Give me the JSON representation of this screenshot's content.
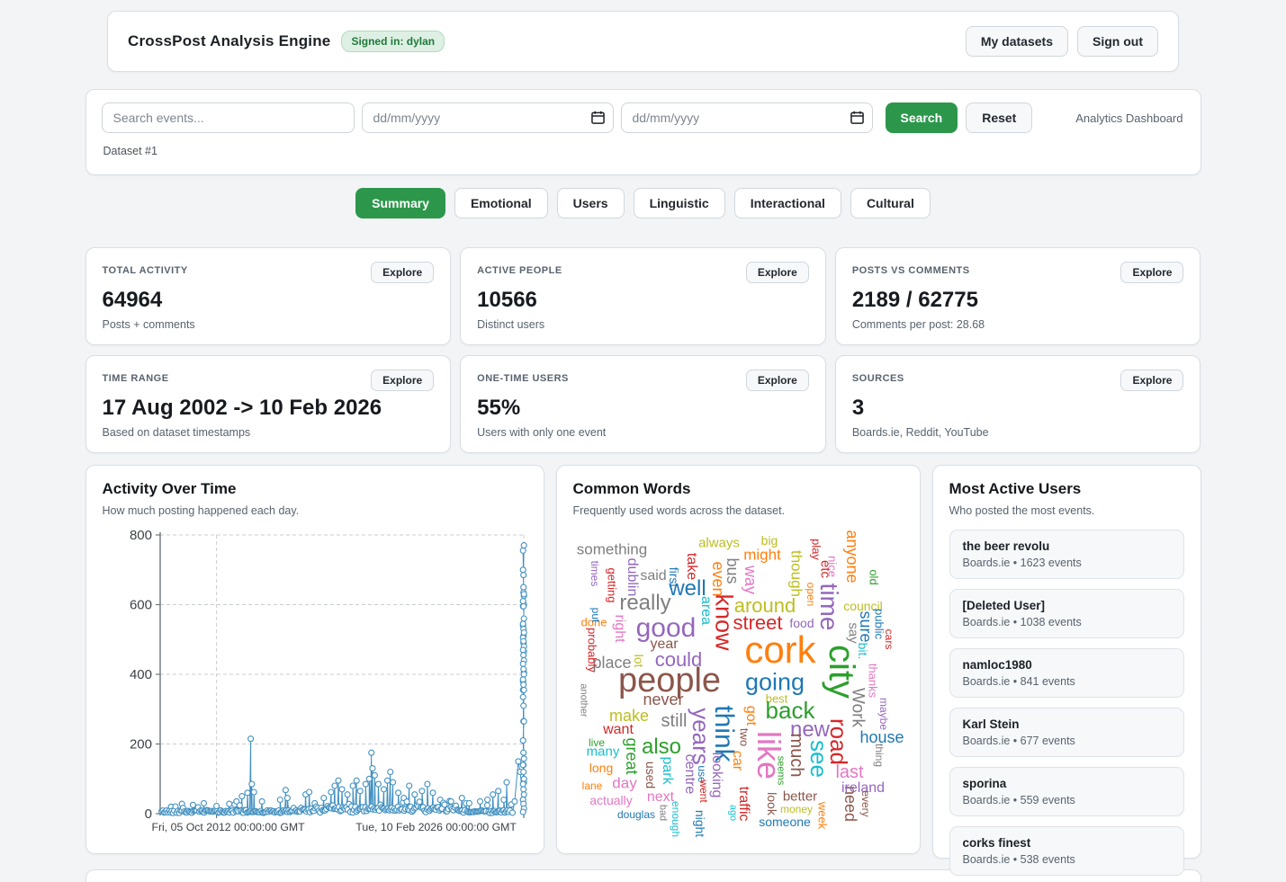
{
  "header": {
    "title": "CrossPost Analysis Engine",
    "signed_in_badge": "Signed in: dylan",
    "my_datasets_label": "My datasets",
    "sign_out_label": "Sign out"
  },
  "filters": {
    "search_placeholder": "Search events...",
    "date_from_placeholder": "dd/mm/yyyy",
    "date_to_placeholder": "dd/mm/yyyy",
    "search_label": "Search",
    "reset_label": "Reset",
    "context_label": "Analytics Dashboard",
    "dataset_label": "Dataset #1"
  },
  "tabs": [
    {
      "label": "Summary",
      "active": true
    },
    {
      "label": "Emotional",
      "active": false
    },
    {
      "label": "Users",
      "active": false
    },
    {
      "label": "Linguistic",
      "active": false
    },
    {
      "label": "Interactional",
      "active": false
    },
    {
      "label": "Cultural",
      "active": false
    }
  ],
  "stat_cards": [
    {
      "label": "TOTAL ACTIVITY",
      "value": "64964",
      "sub": "Posts + comments",
      "explore_label": "Explore"
    },
    {
      "label": "ACTIVE PEOPLE",
      "value": "10566",
      "sub": "Distinct users",
      "explore_label": "Explore"
    },
    {
      "label": "POSTS VS COMMENTS",
      "value": "2189 / 62775",
      "sub": "Comments per post: 28.68",
      "explore_label": "Explore"
    },
    {
      "label": "TIME RANGE",
      "value": "17 Aug 2002 -> 10 Feb 2026",
      "sub": "Based on dataset timestamps",
      "explore_label": "Explore"
    },
    {
      "label": "ONE-TIME USERS",
      "value": "55%",
      "sub": "Users with only one event",
      "explore_label": "Explore"
    },
    {
      "label": "SOURCES",
      "value": "3",
      "sub": "Boards.ie, Reddit, YouTube",
      "explore_label": "Explore"
    }
  ],
  "activity_chart": {
    "title": "Activity Over Time",
    "subtitle": "How much posting happened each day.",
    "chart_data": {
      "type": "line",
      "marker": "circle",
      "color": "#4190c0",
      "grid": true,
      "ylim": [
        0,
        800
      ],
      "yticks": [
        0,
        200,
        400,
        600,
        800
      ],
      "x_tick_positions": [
        0.155,
        1.0
      ],
      "x_tick_labels": [
        "Fri, 05 Oct 2012 00:00:00 GMT",
        "Tue, 10 Feb 2026 00:00:00 GMT"
      ],
      "x_label_centers": [
        0.187,
        0.759
      ],
      "baseline": {
        "count": 280,
        "typical_range": [
          2,
          30
        ],
        "seed": 42
      },
      "spikes": [
        [
          0.03,
          20
        ],
        [
          0.06,
          28
        ],
        [
          0.09,
          25
        ],
        [
          0.12,
          30
        ],
        [
          0.155,
          22
        ],
        [
          0.19,
          28
        ],
        [
          0.21,
          35
        ],
        [
          0.225,
          50
        ],
        [
          0.24,
          60
        ],
        [
          0.249,
          215
        ],
        [
          0.252,
          85
        ],
        [
          0.258,
          62
        ],
        [
          0.28,
          35
        ],
        [
          0.33,
          40
        ],
        [
          0.345,
          68
        ],
        [
          0.35,
          45
        ],
        [
          0.4,
          55
        ],
        [
          0.41,
          62
        ],
        [
          0.425,
          30
        ],
        [
          0.45,
          45
        ],
        [
          0.47,
          62
        ],
        [
          0.48,
          80
        ],
        [
          0.49,
          95
        ],
        [
          0.5,
          70
        ],
        [
          0.515,
          55
        ],
        [
          0.53,
          80
        ],
        [
          0.54,
          95
        ],
        [
          0.55,
          65
        ],
        [
          0.565,
          85
        ],
        [
          0.575,
          100
        ],
        [
          0.581,
          175
        ],
        [
          0.584,
          130
        ],
        [
          0.59,
          110
        ],
        [
          0.6,
          85
        ],
        [
          0.615,
          70
        ],
        [
          0.625,
          95
        ],
        [
          0.633,
          120
        ],
        [
          0.64,
          90
        ],
        [
          0.655,
          60
        ],
        [
          0.67,
          45
        ],
        [
          0.685,
          80
        ],
        [
          0.7,
          55
        ],
        [
          0.72,
          65
        ],
        [
          0.735,
          85
        ],
        [
          0.75,
          60
        ],
        [
          0.77,
          40
        ],
        [
          0.8,
          35
        ],
        [
          0.83,
          45
        ],
        [
          0.85,
          30
        ],
        [
          0.88,
          35
        ],
        [
          0.9,
          40
        ],
        [
          0.915,
          55
        ],
        [
          0.93,
          65
        ],
        [
          0.945,
          40
        ],
        [
          0.953,
          90
        ],
        [
          0.975,
          35
        ],
        [
          0.985,
          150
        ],
        [
          0.99,
          120
        ]
      ],
      "right_cluster_x": 0.998,
      "right_cluster": [
        40,
        140,
        90,
        380,
        265,
        405,
        355,
        490,
        465,
        540,
        510,
        600,
        595,
        635,
        625,
        700,
        685,
        770,
        755,
        650,
        630,
        610,
        595,
        560,
        545,
        530,
        520,
        505,
        495,
        480,
        470,
        455,
        440,
        430,
        415,
        400,
        385,
        370,
        355,
        335,
        310,
        265,
        210,
        175,
        158,
        140,
        120,
        100,
        85,
        70,
        55,
        40,
        28,
        15,
        5
      ]
    }
  },
  "word_cloud": {
    "title": "Common Words",
    "subtitle": "Frequently used words across the dataset.",
    "palette": {
      "blue": "#1f77b4",
      "orange": "#ff7f0e",
      "green": "#2ca02c",
      "red": "#d62728",
      "purple": "#9467bd",
      "brown": "#8c564b",
      "pink": "#e377c2",
      "gray": "#7f7f7f",
      "olive": "#bcbd22",
      "teal": "#17becf"
    },
    "words": [
      [
        "something",
        36,
        22,
        17,
        "gray",
        0
      ],
      [
        "always",
        155,
        15,
        15,
        "olive",
        0
      ],
      [
        "big",
        211,
        12,
        14,
        "olive",
        0
      ],
      [
        "might",
        203,
        28,
        17,
        "orange",
        0
      ],
      [
        "play",
        263,
        22,
        13,
        "red",
        90
      ],
      [
        "etc",
        273,
        44,
        15,
        "red",
        90
      ],
      [
        "anyone",
        303,
        30,
        18,
        "orange",
        90
      ],
      [
        "old",
        327,
        53,
        13,
        "green",
        90
      ],
      [
        "nice",
        281,
        41,
        13,
        "pink",
        90
      ],
      [
        "take",
        124,
        41,
        16,
        "red",
        90
      ],
      [
        "even",
        154,
        55,
        18,
        "orange",
        90
      ],
      [
        "bus",
        170,
        46,
        18,
        "gray",
        90
      ],
      [
        "way",
        190,
        56,
        18,
        "pink",
        90
      ],
      [
        "though",
        241,
        49,
        17,
        "olive",
        90
      ],
      [
        "times",
        17,
        49,
        12,
        "purple",
        90
      ],
      [
        "getting",
        36,
        62,
        13,
        "red",
        90
      ],
      [
        "dublin",
        58,
        53,
        16,
        "purple",
        90
      ],
      [
        "said",
        82,
        52,
        16,
        "gray",
        0
      ],
      [
        "first",
        105,
        53,
        14,
        "blue",
        90
      ],
      [
        "well",
        120,
        66,
        24,
        "blue",
        0
      ],
      [
        "open",
        257,
        72,
        12,
        "orange",
        90
      ],
      [
        "time",
        277,
        86,
        28,
        "purple",
        90
      ],
      [
        "council",
        315,
        85,
        14,
        "olive",
        0
      ],
      [
        "done",
        16,
        103,
        13,
        "orange",
        0
      ],
      [
        "right",
        44,
        110,
        16,
        "pink",
        90
      ],
      [
        "really",
        73,
        82,
        24,
        "gray",
        0
      ],
      [
        "area",
        140,
        90,
        16,
        "teal",
        90
      ],
      [
        "know",
        160,
        103,
        27,
        "red",
        90
      ],
      [
        "around",
        206,
        85,
        22,
        "olive",
        0
      ],
      [
        "street",
        198,
        104,
        22,
        "red",
        0
      ],
      [
        "food",
        247,
        104,
        14,
        "purple",
        0
      ],
      [
        "sure",
        318,
        108,
        18,
        "blue",
        90
      ],
      [
        "public",
        333,
        105,
        13,
        "blue",
        90
      ],
      [
        "cars",
        344,
        122,
        12,
        "red",
        90
      ],
      [
        "say",
        304,
        115,
        15,
        "gray",
        90
      ],
      [
        "bit.",
        315,
        135,
        14,
        "teal",
        90
      ],
      [
        "thanks",
        326,
        168,
        13,
        "pink",
        90
      ],
      [
        "good",
        96,
        110,
        30,
        "purple",
        0
      ],
      [
        "year",
        94,
        128,
        16,
        "brown",
        0
      ],
      [
        "place",
        36,
        148,
        18,
        "gray",
        0
      ],
      [
        "lot",
        66,
        146,
        14,
        "olive",
        90
      ],
      [
        "could",
        110,
        145,
        22,
        "purple",
        0
      ],
      [
        "probably",
        14,
        134,
        13,
        "red",
        90
      ],
      [
        "put",
        18,
        95,
        12,
        "blue",
        90
      ],
      [
        "another",
        4,
        190,
        11,
        "gray",
        90
      ],
      [
        "people",
        100,
        168,
        38,
        "brown",
        0
      ],
      [
        "going",
        217,
        170,
        27,
        "blue",
        0
      ],
      [
        "cork",
        223,
        134,
        42,
        "orange",
        0
      ],
      [
        "city",
        291,
        158,
        40,
        "green",
        90
      ],
      [
        "Work",
        309,
        198,
        19,
        "gray",
        90
      ],
      [
        "maybe",
        338,
        205,
        12,
        "purple",
        90
      ],
      [
        "never",
        93,
        189,
        18,
        "brown",
        0
      ],
      [
        "make",
        55,
        207,
        18,
        "olive",
        0
      ],
      [
        "still",
        105,
        213,
        20,
        "gray",
        0
      ],
      [
        "want",
        43,
        223,
        16,
        "red",
        0
      ],
      [
        "live",
        19,
        237,
        12,
        "green",
        0
      ],
      [
        "many",
        26,
        247,
        15,
        "teal",
        0
      ],
      [
        "long",
        24,
        265,
        14,
        "orange",
        0
      ],
      [
        "lane",
        14,
        285,
        12,
        "orange",
        0
      ],
      [
        "day",
        50,
        282,
        17,
        "pink",
        0
      ],
      [
        "actually",
        35,
        301,
        14,
        "pink",
        0
      ],
      [
        "douglas",
        63,
        317,
        12,
        "blue",
        0
      ],
      [
        "great",
        58,
        252,
        18,
        "green",
        90
      ],
      [
        "also",
        91,
        242,
        24,
        "green",
        0
      ],
      [
        "park",
        97,
        268,
        16,
        "teal",
        90
      ],
      [
        "used",
        79,
        273,
        14,
        "brown",
        90
      ],
      [
        "centre",
        122,
        272,
        16,
        "purple",
        90
      ],
      [
        "next",
        90,
        298,
        16,
        "pink",
        0
      ],
      [
        "bad",
        92,
        315,
        11,
        "gray",
        90
      ],
      [
        "enough",
        107,
        322,
        12,
        "teal",
        90
      ],
      [
        "years",
        135,
        230,
        26,
        "purple",
        90
      ],
      [
        "think",
        160,
        227,
        30,
        "blue",
        90
      ],
      [
        "use",
        136,
        272,
        12,
        "blue",
        90
      ],
      [
        "went",
        138,
        291,
        12,
        "red",
        90
      ],
      [
        "looking",
        152,
        273,
        16,
        "purple",
        90
      ],
      [
        "night",
        134,
        327,
        14,
        "blue",
        90
      ],
      [
        "ago",
        170,
        315,
        11,
        "teal",
        90
      ],
      [
        "got",
        190,
        207,
        16,
        "orange",
        90
      ],
      [
        "two",
        183,
        231,
        13,
        "brown",
        90
      ],
      [
        "car",
        175,
        257,
        16,
        "orange",
        90
      ],
      [
        "traffic",
        182,
        305,
        16,
        "red",
        90
      ],
      [
        "best",
        219,
        188,
        13,
        "olive",
        0
      ],
      [
        "back",
        234,
        201,
        26,
        "green",
        0
      ],
      [
        "new",
        256,
        223,
        24,
        "purple",
        0
      ],
      [
        "like",
        210,
        251,
        36,
        "pink",
        90
      ],
      [
        "seems",
        223,
        268,
        11,
        "green",
        90
      ],
      [
        "much",
        241,
        251,
        20,
        "brown",
        90
      ],
      [
        "look",
        214,
        305,
        14,
        "brown",
        90
      ],
      [
        "see",
        266,
        255,
        26,
        "teal",
        90
      ],
      [
        "money",
        241,
        311,
        12,
        "olive",
        0
      ],
      [
        "someone",
        228,
        325,
        14,
        "blue",
        0
      ],
      [
        "better",
        245,
        297,
        15,
        "brown",
        0
      ],
      [
        "week",
        270,
        318,
        13,
        "orange",
        90
      ],
      [
        "road",
        288,
        236,
        26,
        "red",
        90
      ],
      [
        "house",
        336,
        231,
        18,
        "blue",
        0
      ],
      [
        "thing",
        333,
        251,
        12,
        "gray",
        90
      ],
      [
        "last",
        300,
        270,
        20,
        "pink",
        0
      ],
      [
        "need",
        301,
        305,
        18,
        "brown",
        90
      ],
      [
        "ireland",
        315,
        288,
        16,
        "purple",
        0
      ],
      [
        "every",
        318,
        305,
        12,
        "brown",
        90
      ]
    ]
  },
  "active_users": {
    "title": "Most Active Users",
    "subtitle": "Who posted the most events.",
    "users": [
      {
        "name": "the beer revolu",
        "meta": "Boards.ie • 1623 events"
      },
      {
        "name": "[Deleted User]",
        "meta": "Boards.ie • 1038 events"
      },
      {
        "name": "namloc1980",
        "meta": "Boards.ie • 841 events"
      },
      {
        "name": "Karl Stein",
        "meta": "Boards.ie • 677 events"
      },
      {
        "name": "sporina",
        "meta": "Boards.ie • 559 events"
      },
      {
        "name": "corks finest",
        "meta": "Boards.ie • 538 events"
      }
    ]
  }
}
